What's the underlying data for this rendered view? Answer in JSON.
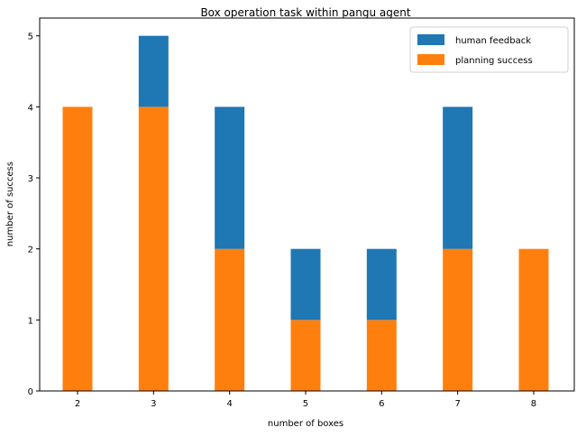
{
  "chart_data": {
    "type": "bar",
    "stacked": true,
    "title": "Box operation task within pangu agent",
    "xlabel": "number of boxes",
    "ylabel": "number of success",
    "categories": [
      "2",
      "3",
      "4",
      "5",
      "6",
      "7",
      "8"
    ],
    "ylim": [
      0,
      5.25
    ],
    "yticks": [
      "0",
      "1",
      "2",
      "3",
      "4",
      "5"
    ],
    "series": [
      {
        "name": "planning success",
        "values": [
          4,
          4,
          2,
          1,
          1,
          2,
          2
        ],
        "color": "#ff7f0e"
      },
      {
        "name": "human feedback",
        "values": [
          0,
          1,
          2,
          1,
          1,
          2,
          0
        ],
        "color": "#1f77b4"
      }
    ],
    "legend": {
      "placement": "top-right",
      "entries": [
        "human feedback",
        "planning success"
      ]
    },
    "grid": false
  }
}
